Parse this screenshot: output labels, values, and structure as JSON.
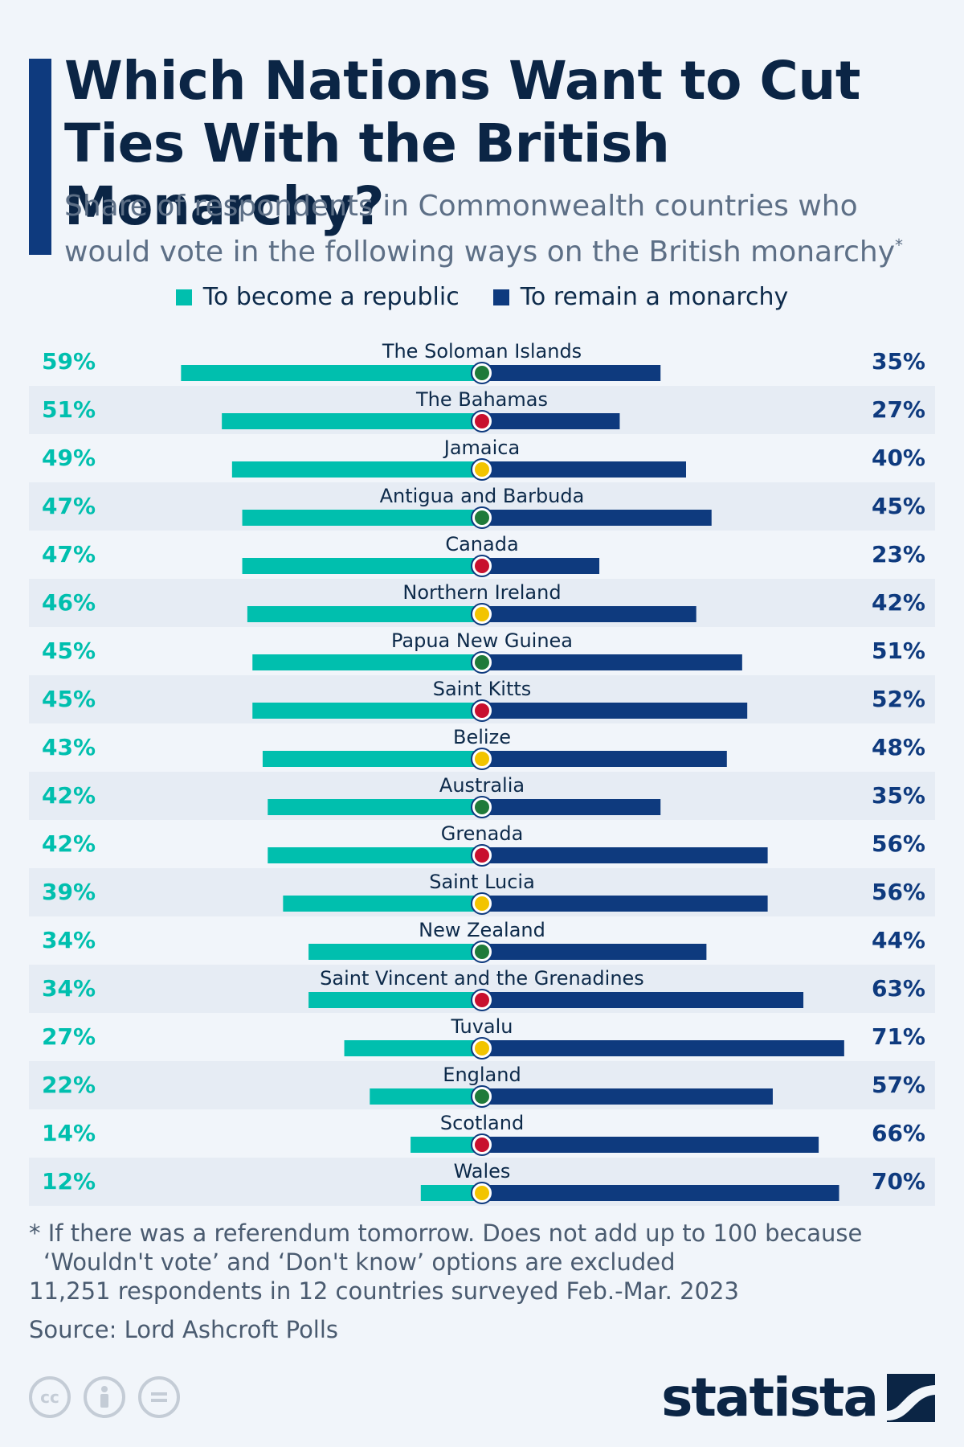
{
  "header": {
    "title": "Which Nations Want to Cut Ties With the British Monarchy?",
    "subtitle": "Share of respondents in Commonwealth countries who would vote in the following ways on the British monarchy",
    "subtitle_marker": "*"
  },
  "legend": {
    "republic": "To become a republic",
    "monarchy": "To remain a monarchy"
  },
  "colors": {
    "republic": "#00bfae",
    "monarchy": "#0e3a7e",
    "row_alt": "#e6ecf4"
  },
  "chart_data": {
    "type": "bar",
    "orientation": "horizontal-diverging",
    "categories": [
      "The Soloman Islands",
      "The Bahamas",
      "Jamaica",
      "Antigua and Barbuda",
      "Canada",
      "Northern Ireland",
      "Papua New Guinea",
      "Saint Kitts",
      "Belize",
      "Australia",
      "Grenada",
      "Saint Lucia",
      "New Zealand",
      "Saint Vincent and the Grenadines",
      "Tuvalu",
      "England",
      "Scotland",
      "Wales"
    ],
    "series": [
      {
        "name": "To become a republic",
        "values": [
          59,
          51,
          49,
          47,
          47,
          46,
          45,
          45,
          43,
          42,
          42,
          39,
          34,
          34,
          27,
          22,
          14,
          12
        ]
      },
      {
        "name": "To remain a monarchy",
        "values": [
          35,
          27,
          40,
          45,
          23,
          42,
          51,
          52,
          48,
          35,
          56,
          56,
          44,
          63,
          71,
          57,
          66,
          70
        ]
      }
    ],
    "unit": "%",
    "legend_position": "top-center",
    "grid": false
  },
  "footnote": {
    "line1": "* If there was a referendum tomorrow. Does not add up to 100 because",
    "line2": "‘Wouldn't vote’ and ‘Don't know’ options are excluded",
    "line3": "11,251 respondents in 12 countries surveyed Feb.-Mar. 2023"
  },
  "source": "Source: Lord Ashcroft Polls",
  "license_icons": [
    "cc",
    "by",
    "nd"
  ],
  "brand": {
    "logo": "statista"
  }
}
